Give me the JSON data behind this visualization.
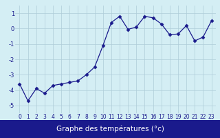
{
  "hours": [
    0,
    1,
    2,
    3,
    4,
    5,
    6,
    7,
    8,
    9,
    10,
    11,
    12,
    13,
    14,
    15,
    16,
    17,
    18,
    19,
    20,
    21,
    22,
    23
  ],
  "temps": [
    -3.6,
    -4.7,
    -3.9,
    -4.2,
    -3.7,
    -3.6,
    -3.5,
    -3.4,
    -3.0,
    -2.5,
    -1.1,
    0.4,
    0.8,
    -0.05,
    0.1,
    0.8,
    0.7,
    0.3,
    -0.4,
    -0.35,
    0.2,
    -0.8,
    -0.55,
    0.5
  ],
  "line_color": "#1a1a8c",
  "marker": "D",
  "marker_size": 2.5,
  "bg_color": "#d4eef4",
  "grid_color": "#aeccd8",
  "xlabel": "Graphe des températures (°c)",
  "xlabel_color": "#ffffff",
  "xlabel_bg": "#1a1a8c",
  "ylim": [
    -5.5,
    1.5
  ],
  "yticks": [
    -5,
    -4,
    -3,
    -2,
    -1,
    0,
    1
  ],
  "xticks": [
    0,
    1,
    2,
    3,
    4,
    5,
    6,
    7,
    8,
    9,
    10,
    11,
    12,
    13,
    14,
    15,
    16,
    17,
    18,
    19,
    20,
    21,
    22,
    23
  ],
  "tick_label_color": "#1a1a8c",
  "tick_label_size": 5.5,
  "xlabel_fontsize": 7.5,
  "label_bar_height": 0.13
}
